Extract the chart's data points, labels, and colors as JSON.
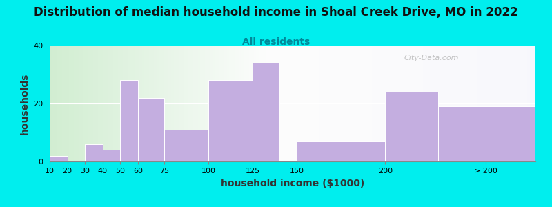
{
  "title": "Distribution of median household income in Shoal Creek Drive, MO in 2022",
  "subtitle": "All residents",
  "xlabel": "household income ($1000)",
  "ylabel": "households",
  "background_color": "#00EEEE",
  "bar_color": "#c4aee0",
  "bar_edge_color": "white",
  "bar_lefts": [
    10,
    20,
    30,
    40,
    50,
    60,
    75,
    100,
    125,
    150,
    200,
    230
  ],
  "bar_widths": [
    10,
    0,
    10,
    10,
    10,
    15,
    25,
    25,
    15,
    50,
    30,
    55
  ],
  "values": [
    2,
    0,
    6,
    4,
    28,
    22,
    11,
    28,
    34,
    7,
    24,
    19
  ],
  "xlim_left": 10,
  "xlim_right": 285,
  "ylim": [
    0,
    40
  ],
  "yticks": [
    0,
    20,
    40
  ],
  "xtick_positions": [
    10,
    20,
    30,
    40,
    50,
    60,
    75,
    100,
    125,
    150,
    200,
    257
  ],
  "xtick_labels": [
    "10",
    "20",
    "30",
    "40",
    "50",
    "60",
    "75",
    "100",
    "125",
    "150",
    "200",
    "> 200"
  ],
  "watermark": "City-Data.com",
  "title_fontsize": 12,
  "subtitle_fontsize": 10,
  "axis_label_fontsize": 10
}
